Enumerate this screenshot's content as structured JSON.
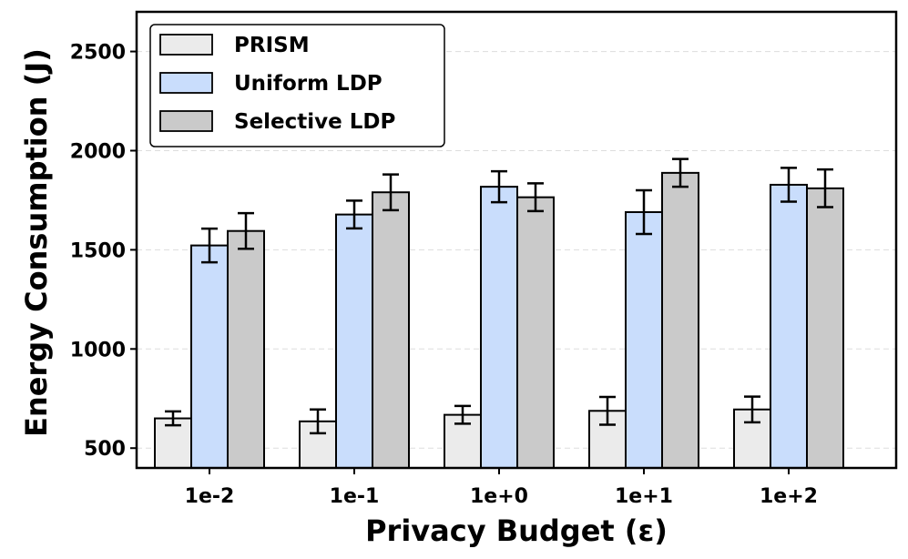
{
  "chart_data": {
    "type": "bar",
    "title": "",
    "xlabel": "Privacy Budget (ε)",
    "ylabel": "Energy Consumption (J)",
    "categories": [
      "1e-2",
      "1e-1",
      "1e+0",
      "1e+1",
      "1e+2"
    ],
    "ylim": [
      400,
      2700
    ],
    "yticks": [
      500,
      1000,
      1500,
      2000,
      2500
    ],
    "grid": "horizontal dashed",
    "legend_position": "top-left",
    "series": [
      {
        "name": "PRISM",
        "color": "#ebebeb",
        "values": [
          650,
          635,
          668,
          688,
          695
        ],
        "errors": [
          35,
          60,
          45,
          70,
          65
        ]
      },
      {
        "name": "Uniform LDP",
        "color": "#c9ddfc",
        "values": [
          1522,
          1678,
          1818,
          1690,
          1828
        ],
        "errors": [
          85,
          70,
          78,
          110,
          85
        ]
      },
      {
        "name": "Selective LDP",
        "color": "#cacaca",
        "values": [
          1595,
          1790,
          1765,
          1888,
          1810
        ],
        "errors": [
          90,
          90,
          70,
          70,
          95
        ]
      }
    ]
  }
}
